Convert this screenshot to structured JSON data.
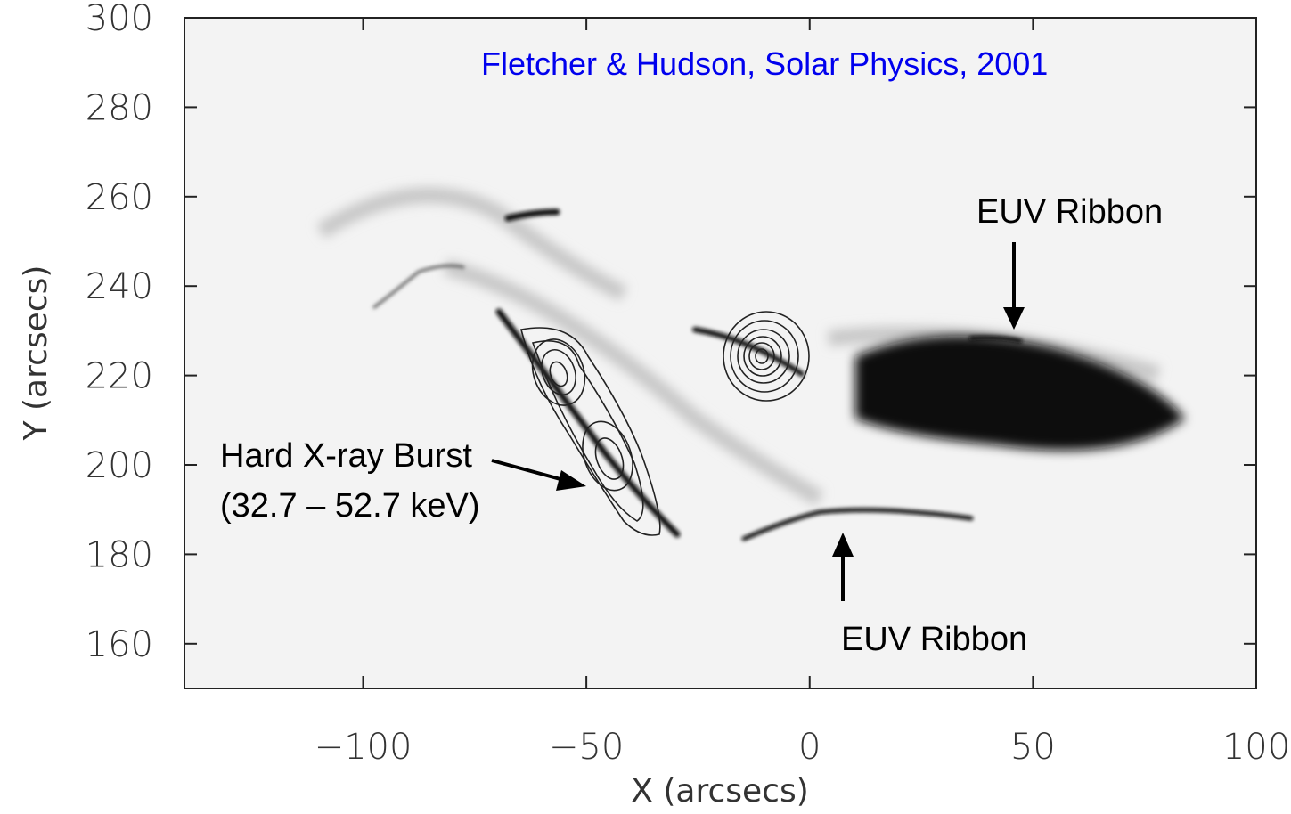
{
  "chart_data": {
    "type": "image",
    "title": "Fletcher & Hudson, Solar Physics, 2001",
    "x_label": "X (arcsecs)",
    "y_label": "Y (arcsecs)",
    "xlim": [
      -140,
      100
    ],
    "ylim": [
      150,
      300
    ],
    "xticks": [
      {
        "value": -100,
        "label": "−100"
      },
      {
        "value": -50,
        "label": "−50"
      },
      0,
      50,
      100
    ],
    "yticks": [
      160,
      180,
      200,
      220,
      240,
      260,
      280,
      300
    ],
    "annotations": [
      "EUV Ribbon",
      "EUV Ribbon",
      "Hard X-ray Burst",
      "(32.7 – 52.7 keV)"
    ]
  }
}
